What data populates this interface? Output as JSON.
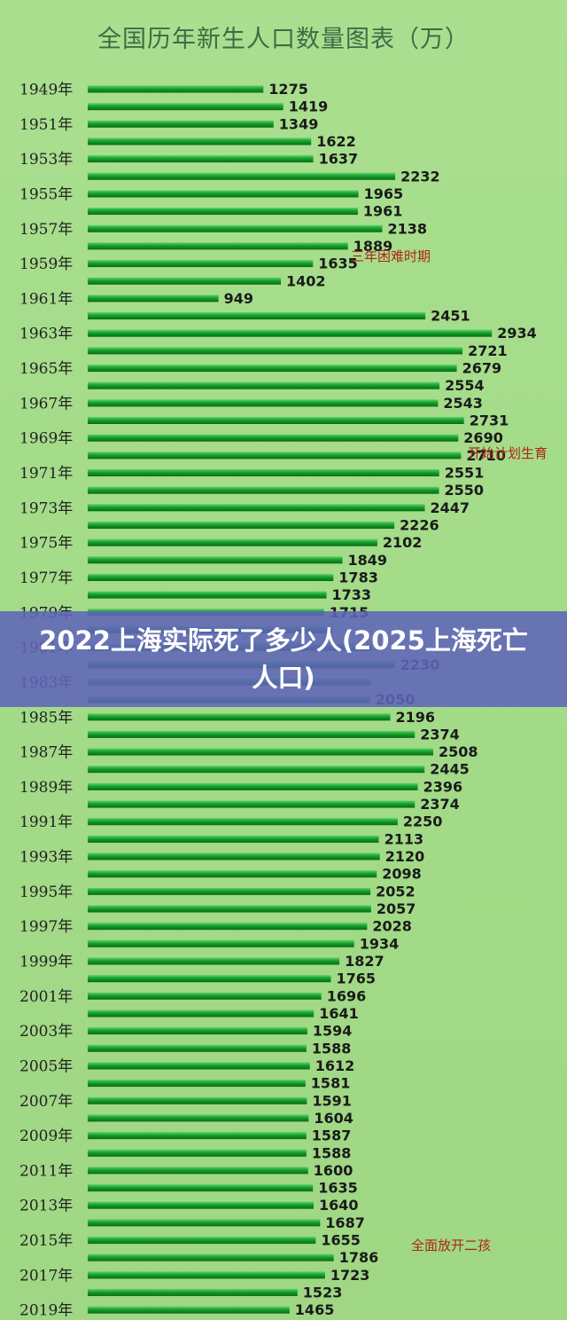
{
  "banner": {
    "text": "2022上海实际死了多少人(2025上海死亡人口)"
  },
  "chart_data": {
    "type": "bar",
    "orientation": "horizontal",
    "title": "全国历年新生人口数量图表（万）",
    "xlabel": "",
    "ylabel": "",
    "categories": [
      "1949",
      "1950",
      "1951",
      "1952",
      "1953",
      "1954",
      "1955",
      "1956",
      "1957",
      "1958",
      "1959",
      "1960",
      "1961",
      "1962",
      "1963",
      "1964",
      "1965",
      "1966",
      "1967",
      "1968",
      "1969",
      "1970",
      "1971",
      "1972",
      "1973",
      "1974",
      "1975",
      "1976",
      "1977",
      "1978",
      "1979",
      "1980",
      "1981",
      "1982",
      "1983",
      "1984",
      "1985",
      "1986",
      "1987",
      "1988",
      "1989",
      "1990",
      "1991",
      "1992",
      "1993",
      "1994",
      "1995",
      "1996",
      "1997",
      "1998",
      "1999",
      "2000",
      "2001",
      "2002",
      "2003",
      "2004",
      "2005",
      "2006",
      "2007",
      "2008",
      "2009",
      "2010",
      "2011",
      "2012",
      "2013",
      "2014",
      "2015",
      "2016",
      "2017",
      "2018",
      "2019"
    ],
    "tick_labels": [
      "1949年",
      "",
      "1951年",
      "",
      "1953年",
      "",
      "1955年",
      "",
      "1957年",
      "",
      "1959年",
      "",
      "1961年",
      "",
      "1963年",
      "",
      "1965年",
      "",
      "1967年",
      "",
      "1969年",
      "",
      "1971年",
      "",
      "1973年",
      "",
      "1975年",
      "",
      "1977年",
      "",
      "1979年",
      "",
      "1981年",
      "",
      "1983年",
      "",
      "1985年",
      "",
      "1987年",
      "",
      "1989年",
      "",
      "1991年",
      "",
      "1993年",
      "",
      "1995年",
      "",
      "1997年",
      "",
      "1999年",
      "",
      "2001年",
      "",
      "2003年",
      "",
      "2005年",
      "",
      "2007年",
      "",
      "2009年",
      "",
      "2011年",
      "",
      "2013年",
      "",
      "2015年",
      "",
      "2017年",
      "",
      "2019年"
    ],
    "values": [
      1275,
      1419,
      1349,
      1622,
      1637,
      2232,
      1965,
      1961,
      2138,
      1889,
      1635,
      1402,
      949,
      2451,
      2934,
      2721,
      2679,
      2554,
      2543,
      2731,
      2690,
      2710,
      2551,
      2550,
      2447,
      2226,
      2102,
      1849,
      1783,
      1733,
      1715,
      1776,
      2064,
      2230,
      2052,
      2050,
      2196,
      2374,
      2508,
      2445,
      2396,
      2374,
      2250,
      2113,
      2120,
      2098,
      2052,
      2057,
      2028,
      1934,
      1827,
      1765,
      1696,
      1641,
      1594,
      1588,
      1612,
      1581,
      1591,
      1604,
      1587,
      1588,
      1600,
      1635,
      1640,
      1687,
      1655,
      1786,
      1723,
      1523,
      1465
    ],
    "value_labels": [
      "1275",
      "1419",
      "1349",
      "1622",
      "1637",
      "2232",
      "1965",
      "1961",
      "2138",
      "1889",
      "1635",
      "1402",
      "949",
      "2451",
      "2934",
      "2721",
      "2679",
      "2554",
      "2543",
      "2731",
      "2690",
      "2710",
      "2551",
      "2550",
      "2447",
      "2226",
      "2102",
      "1849",
      "1783",
      "1733",
      "1715",
      "",
      "",
      "2230",
      "",
      "2050",
      "2196",
      "2374",
      "2508",
      "2445",
      "2396",
      "2374",
      "2250",
      "2113",
      "2120",
      "2098",
      "2052",
      "2057",
      "2028",
      "1934",
      "1827",
      "1765",
      "1696",
      "1641",
      "1594",
      "1588",
      "1612",
      "1581",
      "1591",
      "1604",
      "1587",
      "1588",
      "1600",
      "1635",
      "1640",
      "1687",
      "1655",
      "1786",
      "1723",
      "1523",
      "1465"
    ],
    "bar_color": "#14a02a",
    "annotations": [
      {
        "text": "三年困难时期",
        "year": "1958"
      },
      {
        "text": "开始计划生育",
        "year": "1970"
      },
      {
        "text": "全面放开二孩",
        "year": "2016"
      }
    ],
    "annotation_color": "#b0241b",
    "grid": false,
    "legend": "none"
  }
}
